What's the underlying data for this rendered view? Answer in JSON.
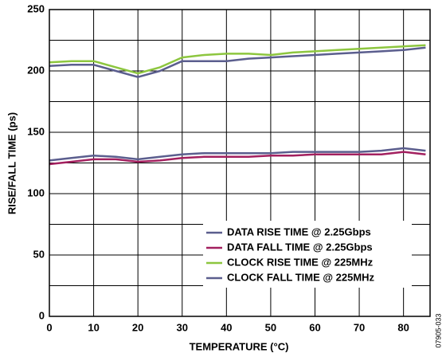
{
  "chart_data": {
    "type": "line",
    "x_label": "TEMPERATURE (°C)",
    "y_label": "RISE/FALL TIME (ps)",
    "figure_id": "07905-033",
    "x": [
      0,
      5,
      10,
      15,
      20,
      25,
      30,
      35,
      40,
      45,
      50,
      55,
      60,
      65,
      70,
      75,
      80,
      85
    ],
    "series": [
      {
        "name": "DATA RISE TIME @ 2.25Gbps",
        "color": "#5b5e8e",
        "values": [
          127,
          129,
          131,
          130,
          128,
          130,
          132,
          133,
          133,
          133,
          133,
          134,
          134,
          134,
          134,
          135,
          137,
          135
        ]
      },
      {
        "name": "DATA FALL TIME @ 2.25Gbps",
        "color": "#a3205f",
        "values": [
          124,
          126,
          128,
          128,
          126,
          127,
          129,
          130,
          130,
          130,
          131,
          131,
          132,
          132,
          132,
          132,
          134,
          132
        ]
      },
      {
        "name": "CLOCK RISE TIME @ 225MHz",
        "color": "#8dc63f",
        "values": [
          207,
          208,
          208,
          203,
          198,
          203,
          211,
          213,
          214,
          214,
          213,
          215,
          216,
          217,
          218,
          219,
          220,
          221
        ]
      },
      {
        "name": "CLOCK FALL TIME @ 225MHz",
        "color": "#5b5e8e",
        "values": [
          204,
          205,
          205,
          200,
          195,
          200,
          208,
          208,
          208,
          210,
          211,
          212,
          213,
          214,
          215,
          216,
          217,
          219
        ]
      }
    ],
    "xlim": [
      0,
      86
    ],
    "xticks": [
      0,
      10,
      20,
      30,
      40,
      50,
      60,
      70,
      80
    ],
    "ylim": [
      0,
      250
    ],
    "yticks": [
      0,
      50,
      100,
      150,
      200,
      250
    ],
    "y_minor_grid": [
      25,
      75,
      125,
      175,
      225
    ],
    "grid": true,
    "legend": "lower right"
  }
}
